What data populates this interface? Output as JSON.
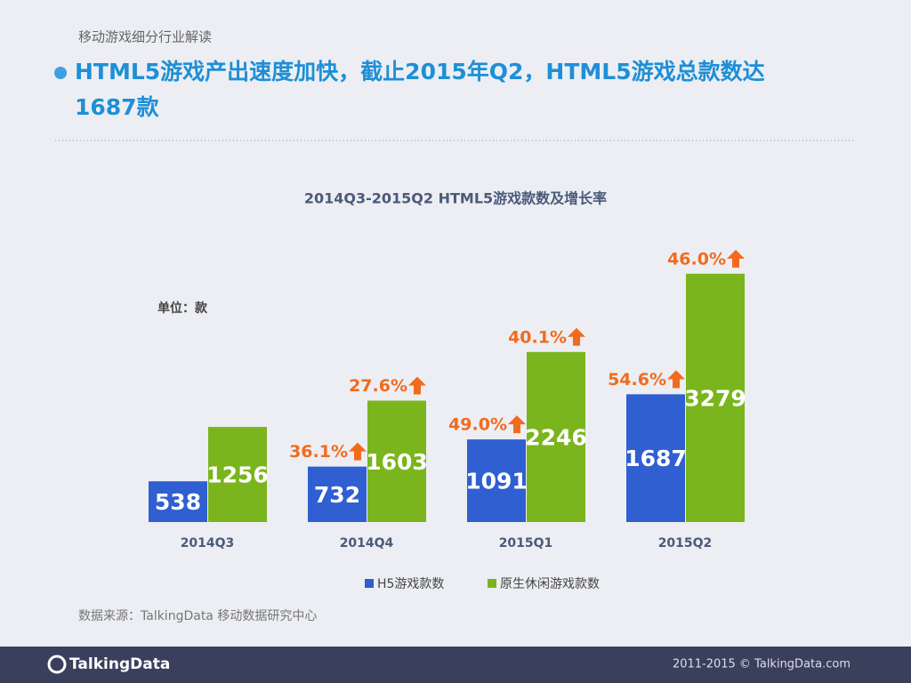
{
  "header": {
    "section": "移动游戏细分行业解读",
    "title_lines": [
      "HTML5游戏产出速度加快，截止2015年Q2，HTML5游戏总款数达",
      "1687款"
    ]
  },
  "chart_data": {
    "type": "bar",
    "title": "2014Q3-2015Q2 HTML5游戏款数及增长率",
    "unit": "单位：款",
    "categories": [
      "2014Q3",
      "2014Q4",
      "2015Q1",
      "2015Q2"
    ],
    "series": [
      {
        "name": "H5游戏款数",
        "color": "#2f5fd0",
        "values": [
          538,
          732,
          1091,
          1687
        ],
        "growth": [
          null,
          36.1,
          49.0,
          54.6
        ],
        "growth_labels": [
          null,
          "36.1%",
          "49.0%",
          "54.6%"
        ]
      },
      {
        "name": "原生休闲游戏款数",
        "color": "#7ab51d",
        "values": [
          1256,
          1603,
          2246,
          3279
        ],
        "growth": [
          null,
          27.6,
          40.1,
          46.0
        ],
        "growth_labels": [
          null,
          "27.6%",
          "40.1%",
          "46.0%"
        ]
      }
    ],
    "growth_color": "#f26b1d",
    "ylim": [
      0,
      3500
    ]
  },
  "source": "数据来源：TalkingData 移动数据研究中心",
  "footer": {
    "logo": "TalkingData",
    "copyright": "2011-2015 © TalkingData.com"
  }
}
